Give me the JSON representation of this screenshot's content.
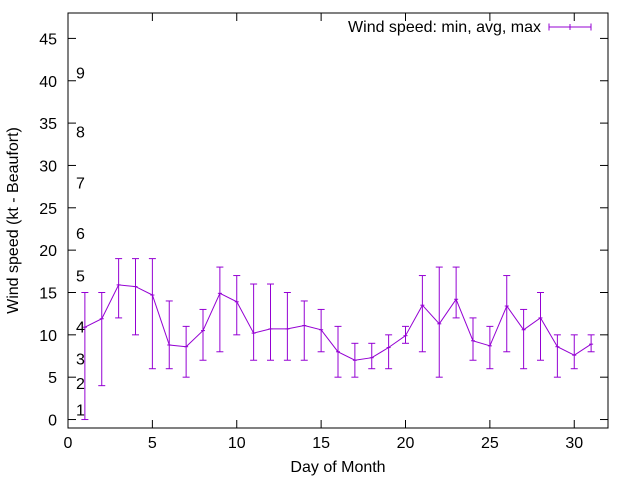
{
  "chart_data": {
    "type": "line",
    "title": "",
    "xlabel": "Day of Month",
    "ylabel": "Wind speed (kt - Beaufort)",
    "xlim": [
      0,
      32
    ],
    "ylim": [
      -1,
      48
    ],
    "xticks": [
      0,
      5,
      10,
      15,
      20,
      25,
      30
    ],
    "yticks": [
      0,
      5,
      10,
      15,
      20,
      25,
      30,
      35,
      40,
      45
    ],
    "grid": false,
    "legend_position": "top-right",
    "series": [
      {
        "name": "Wind speed: min, avg, max",
        "color": "#9400d3",
        "error_bars": true,
        "x": [
          1,
          2,
          3,
          4,
          5,
          6,
          7,
          8,
          9,
          10,
          11,
          12,
          13,
          14,
          15,
          16,
          17,
          18,
          19,
          20,
          21,
          22,
          23,
          24,
          25,
          26,
          27,
          28,
          29,
          30,
          31
        ],
        "avg": [
          10.9,
          11.9,
          15.9,
          15.7,
          14.7,
          8.8,
          8.6,
          10.5,
          14.9,
          13.9,
          10.2,
          10.7,
          10.7,
          11.1,
          10.6,
          8.0,
          7.0,
          7.3,
          8.5,
          9.9,
          13.5,
          11.3,
          14.2,
          9.3,
          8.7,
          13.4,
          10.6,
          12.0,
          8.6,
          7.6,
          8.9
        ],
        "min": [
          0,
          4,
          12,
          10,
          6,
          6,
          5,
          7,
          8,
          10,
          7,
          7,
          7,
          7,
          8,
          5,
          5,
          6,
          6,
          9,
          8,
          5,
          12,
          7,
          6,
          8,
          6,
          7,
          5,
          6,
          8
        ],
        "max": [
          15,
          15,
          19,
          19,
          19,
          14,
          11,
          13,
          18,
          17,
          16,
          16,
          15,
          14,
          13,
          11,
          9,
          9,
          10,
          11,
          17,
          18,
          18,
          12,
          11,
          17,
          13,
          15,
          10,
          10,
          10
        ]
      }
    ],
    "beaufort_labels": [
      {
        "label": "1",
        "y": 1.2
      },
      {
        "label": "2",
        "y": 4.3
      },
      {
        "label": "3",
        "y": 7.2
      },
      {
        "label": "4",
        "y": 11.0
      },
      {
        "label": "5",
        "y": 17.0
      },
      {
        "label": "6",
        "y": 22.0
      },
      {
        "label": "7",
        "y": 28.0
      },
      {
        "label": "8",
        "y": 34.0
      },
      {
        "label": "9",
        "y": 41.0
      }
    ]
  }
}
